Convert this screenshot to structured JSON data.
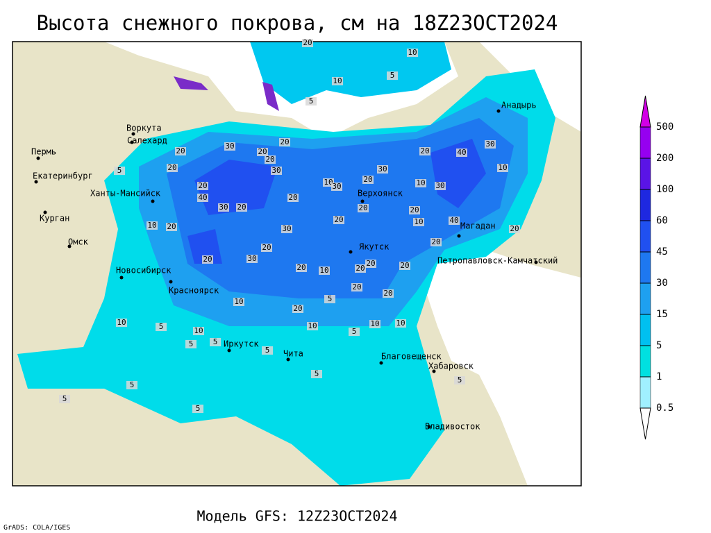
{
  "header": {
    "title": "Высота снежного покрова, см на 18Z23OCT2024"
  },
  "footer": {
    "model": "Модель GFS: 12Z23OCT2024",
    "credit": "GrADS: COLA/IGES"
  },
  "legend": {
    "levels": [
      0.5,
      1,
      5,
      15,
      30,
      45,
      60,
      100,
      200,
      500
    ],
    "colors": [
      "#ffffff",
      "#a0f0ff",
      "#00e0e0",
      "#00c0f0",
      "#1ea0f0",
      "#1e78f0",
      "#2050f0",
      "#1e28e0",
      "#5a14e6",
      "#9600f0",
      "#d200e6"
    ]
  },
  "map": {
    "cities": [
      "Воркута",
      "Салехард",
      "Пермь",
      "Екатеринбург",
      "Ханты-Мансийск",
      "Курган",
      "Омск",
      "Новосибирск",
      "Красноярск",
      "Иркутск",
      "Чита",
      "Благовещенск",
      "Хабаровск",
      "Владивосток",
      "Верхоянск",
      "Якутск",
      "Магадан",
      "Петропавловск-Камчатский",
      "Анадырь"
    ],
    "contour_labels": [
      20,
      10,
      10,
      5,
      5,
      20,
      30,
      20,
      20,
      20,
      30,
      20,
      5,
      20,
      10,
      30,
      30,
      20,
      20,
      40,
      30,
      10,
      10,
      30,
      40,
      20,
      20,
      30,
      20,
      20,
      20,
      10,
      40,
      10,
      20,
      30,
      20,
      20,
      30,
      20,
      20,
      20,
      20,
      20,
      10,
      20,
      20,
      5,
      10,
      20,
      10,
      10,
      10,
      10,
      5,
      5,
      10,
      5,
      5,
      5,
      5,
      5,
      5,
      5,
      5,
      20
    ]
  }
}
